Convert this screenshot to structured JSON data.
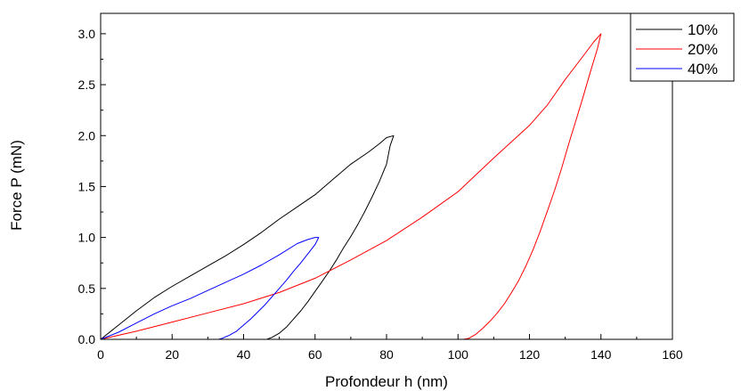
{
  "chart_data": {
    "type": "line",
    "title": "",
    "xlabel": "Profondeur h (nm)",
    "ylabel": "Force P (mN)",
    "xlim": [
      0,
      160
    ],
    "ylim": [
      0,
      3.2
    ],
    "xticks": [
      0,
      20,
      40,
      60,
      80,
      100,
      120,
      140,
      160
    ],
    "xtick_labels": [
      "0",
      "20",
      "40",
      "60",
      "80",
      "100",
      "120",
      "140",
      "160"
    ],
    "yticks": [
      0,
      0.5,
      1.0,
      1.5,
      2.0,
      2.5,
      3.0
    ],
    "ytick_labels": [
      "0.0",
      "0.5",
      "1.0",
      "1.5",
      "2.0",
      "2.5",
      "3.0"
    ],
    "grid": false,
    "legend_position": "top-right",
    "series": [
      {
        "name": "10%",
        "color": "#000000",
        "x": [
          0,
          5,
          10,
          15,
          20,
          25,
          30,
          35,
          40,
          45,
          50,
          55,
          60,
          65,
          70,
          75,
          78,
          80,
          82,
          81,
          80,
          78,
          76,
          74,
          72,
          70,
          68,
          66,
          64,
          62,
          60,
          58,
          56,
          54,
          52,
          50,
          48,
          46.5
        ],
        "y": [
          0,
          0.14,
          0.28,
          0.41,
          0.52,
          0.62,
          0.72,
          0.82,
          0.93,
          1.05,
          1.18,
          1.3,
          1.42,
          1.57,
          1.72,
          1.84,
          1.92,
          1.98,
          2.0,
          1.9,
          1.72,
          1.55,
          1.4,
          1.26,
          1.13,
          1.01,
          0.9,
          0.78,
          0.67,
          0.57,
          0.47,
          0.37,
          0.28,
          0.2,
          0.12,
          0.06,
          0.02,
          0
        ]
      },
      {
        "name": "20%",
        "color": "#ff0000",
        "x": [
          0,
          10,
          20,
          30,
          40,
          50,
          60,
          70,
          80,
          90,
          100,
          110,
          120,
          125,
          130,
          135,
          138,
          140,
          139,
          137,
          135,
          133,
          131,
          129,
          127,
          125,
          123,
          121,
          119,
          117,
          115,
          113,
          111,
          109,
          107,
          105,
          103,
          101.5
        ],
        "y": [
          0,
          0.08,
          0.17,
          0.26,
          0.35,
          0.46,
          0.6,
          0.78,
          0.97,
          1.2,
          1.45,
          1.78,
          2.1,
          2.3,
          2.55,
          2.78,
          2.92,
          3.0,
          2.85,
          2.62,
          2.38,
          2.15,
          1.92,
          1.68,
          1.46,
          1.26,
          1.06,
          0.88,
          0.72,
          0.58,
          0.46,
          0.35,
          0.26,
          0.18,
          0.11,
          0.05,
          0.01,
          0
        ]
      },
      {
        "name": "40%",
        "color": "#0000ff",
        "x": [
          0,
          5,
          10,
          15,
          20,
          25,
          30,
          35,
          40,
          45,
          50,
          55,
          58,
          60,
          61,
          60,
          58,
          56,
          54,
          52,
          50,
          48,
          46,
          44,
          42,
          40,
          38,
          36,
          34,
          33
        ],
        "y": [
          0,
          0.07,
          0.16,
          0.25,
          0.33,
          0.4,
          0.48,
          0.56,
          0.64,
          0.73,
          0.83,
          0.94,
          0.98,
          1.0,
          1.0,
          0.93,
          0.84,
          0.75,
          0.67,
          0.58,
          0.5,
          0.42,
          0.34,
          0.27,
          0.2,
          0.14,
          0.08,
          0.04,
          0.01,
          0
        ]
      }
    ]
  }
}
